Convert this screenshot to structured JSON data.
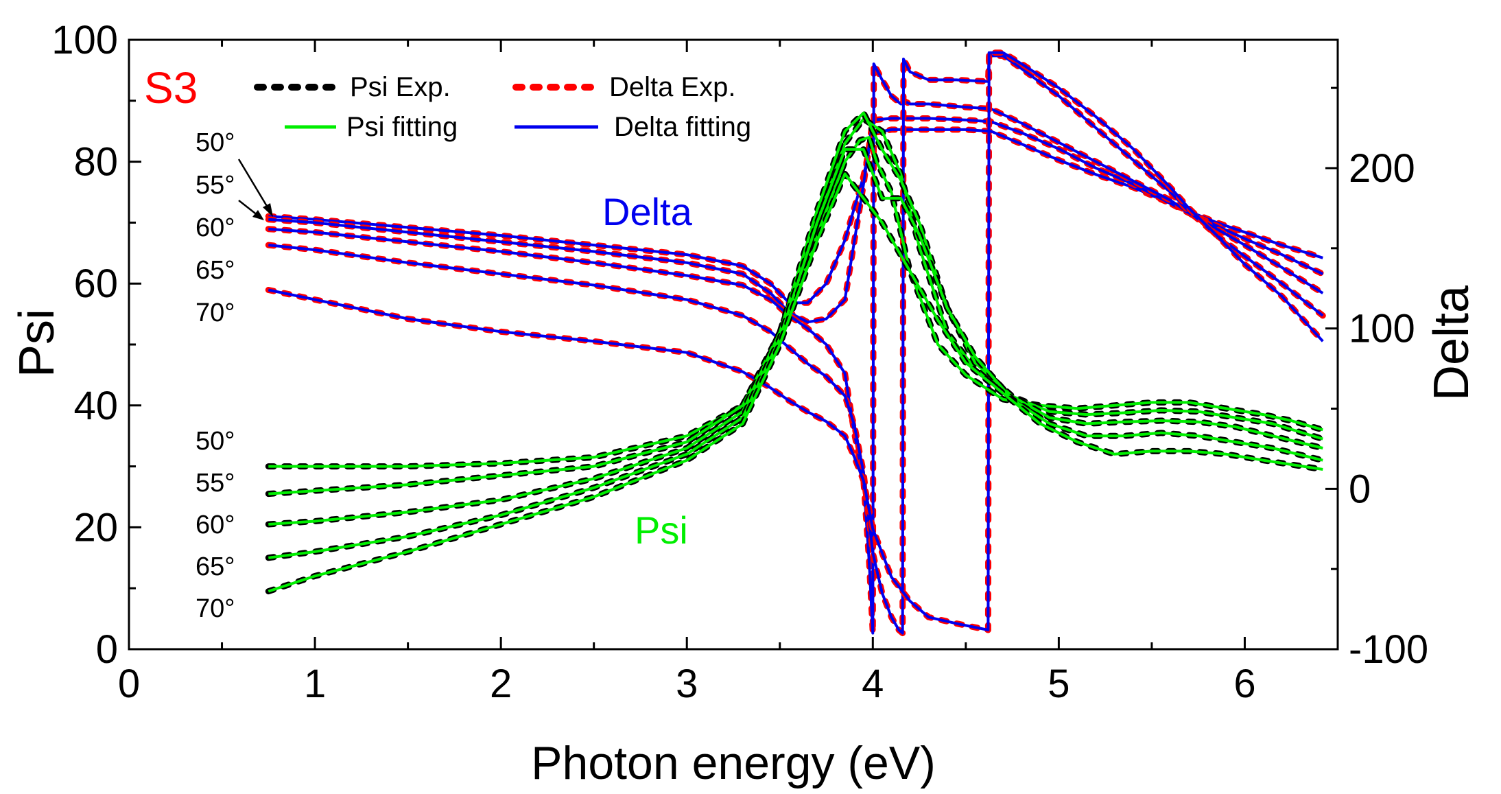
{
  "chart_data": {
    "type": "line",
    "title": "",
    "sample_label": "S3",
    "xlabel": "Photon energy (eV)",
    "ylabel": "Psi",
    "y2label": "Delta",
    "xlim": [
      0,
      6.5
    ],
    "ylim": [
      0,
      100
    ],
    "y2lim": [
      -100,
      280
    ],
    "xticks": [
      "0",
      "1",
      "2",
      "3",
      "4",
      "5",
      "6"
    ],
    "yticks": [
      "0",
      "20",
      "40",
      "60",
      "80",
      "100"
    ],
    "y2ticks": [
      "-100",
      "0",
      "100",
      "200"
    ],
    "legend": {
      "placement": "top-left",
      "entries": [
        "Psi Exp.",
        "Delta Exp.",
        "Psi fitting",
        "Delta fitting"
      ]
    },
    "annotations": {
      "delta_label": "Delta",
      "psi_label": "Psi",
      "delta_angles": [
        "50°",
        "55°",
        "60°",
        "65°",
        "70°"
      ],
      "psi_angles": [
        "50°",
        "55°",
        "60°",
        "65°",
        "70°"
      ]
    },
    "colors": {
      "psi_exp": "#000000",
      "delta_exp": "#ff0000",
      "psi_fit": "#00ee00",
      "delta_fit": "#0000ee",
      "sample": "#ff0000"
    },
    "psi_series": [
      {
        "name": "50°",
        "x": [
          0.75,
          1.0,
          1.5,
          2.0,
          2.5,
          3.0,
          3.3,
          3.5,
          3.7,
          3.85,
          3.93,
          3.98,
          4.02,
          4.1,
          4.2,
          4.35,
          4.5,
          4.7,
          4.9,
          5.1,
          5.3,
          5.5,
          5.7,
          5.9,
          6.1,
          6.25,
          6.42
        ],
        "y": [
          30,
          30,
          30,
          30.5,
          31.5,
          35,
          40,
          51,
          68,
          80,
          83.5,
          84,
          80,
          75,
          62,
          50,
          45,
          41,
          40,
          39.5,
          40,
          40.5,
          40.5,
          39.5,
          38.5,
          37.5,
          36
        ]
      },
      {
        "name": "55°",
        "x": [
          0.75,
          1.0,
          1.5,
          2.0,
          2.5,
          3.0,
          3.3,
          3.5,
          3.7,
          3.85,
          3.95,
          4.05,
          4.15,
          4.25,
          4.4,
          4.55,
          4.75,
          4.95,
          5.15,
          5.35,
          5.55,
          5.75,
          5.95,
          6.15,
          6.42
        ],
        "y": [
          25.5,
          26,
          27,
          28.5,
          30,
          34,
          40,
          52,
          70,
          83,
          87,
          85,
          78,
          66,
          52,
          46,
          41.5,
          39,
          38.5,
          38.8,
          39.2,
          39,
          38,
          37,
          34.5
        ]
      },
      {
        "name": "60°",
        "x": [
          0.75,
          1.0,
          1.5,
          2.0,
          2.5,
          3.0,
          3.3,
          3.5,
          3.7,
          3.85,
          3.95,
          4.05,
          4.15,
          4.25,
          4.4,
          4.55,
          4.75,
          4.95,
          5.15,
          5.35,
          5.55,
          5.75,
          5.95,
          6.15,
          6.42
        ],
        "y": [
          20.5,
          21,
          22.5,
          24.5,
          28,
          33,
          39,
          52,
          72,
          85,
          88,
          82,
          77,
          70,
          56,
          47,
          41.5,
          38,
          37,
          37.3,
          37.5,
          37.3,
          36.5,
          35,
          33
        ]
      },
      {
        "name": "65°",
        "x": [
          0.75,
          1.0,
          1.5,
          2.0,
          2.5,
          3.0,
          3.3,
          3.5,
          3.7,
          3.85,
          3.95,
          4.05,
          4.15,
          4.25,
          4.4,
          4.55,
          4.75,
          4.95,
          5.15,
          5.35,
          5.55,
          5.75,
          5.95,
          6.15,
          6.42
        ],
        "y": [
          15,
          16,
          18.5,
          22,
          26.5,
          32,
          38,
          51,
          70,
          82,
          82,
          74,
          74,
          68,
          56,
          48,
          41,
          37,
          35,
          35,
          35.5,
          35,
          34,
          33,
          31
        ]
      },
      {
        "name": "70°",
        "x": [
          0.75,
          1.0,
          1.5,
          2.0,
          2.5,
          3.0,
          3.3,
          3.5,
          3.7,
          3.85,
          3.95,
          4.05,
          4.2,
          4.35,
          4.5,
          4.7,
          4.9,
          5.1,
          5.3,
          5.5,
          5.7,
          5.9,
          6.1,
          6.42
        ],
        "y": [
          9.5,
          12,
          16,
          20.5,
          25,
          31,
          37,
          50,
          67,
          78,
          74,
          70,
          62,
          54,
          47,
          42,
          37,
          34,
          32,
          32.5,
          32.5,
          32,
          31,
          29.5
        ]
      }
    ],
    "delta_series": [
      {
        "name": "50°",
        "x": [
          0.75,
          1.0,
          1.5,
          2.0,
          2.5,
          3.0,
          3.3,
          3.45,
          3.55,
          3.65,
          3.75,
          3.85,
          3.95,
          4.0,
          4.005,
          4.1,
          4.3,
          4.5,
          4.63,
          4.635,
          4.8,
          5.0,
          5.2,
          5.4,
          5.6,
          5.7,
          5.85,
          6.0,
          6.2,
          6.42
        ],
        "y": [
          170,
          168,
          163,
          158,
          152,
          146,
          139,
          128,
          116,
          116,
          128,
          155,
          195,
          222,
          222,
          224,
          224,
          224,
          223,
          223,
          215,
          205,
          196,
          188,
          178,
          173,
          166,
          160,
          152,
          144
        ]
      },
      {
        "name": "55°",
        "x": [
          0.75,
          1.0,
          1.5,
          2.0,
          2.5,
          3.0,
          3.3,
          3.45,
          3.55,
          3.65,
          3.75,
          3.85,
          3.95,
          4.0,
          4.005,
          4.1,
          4.3,
          4.5,
          4.63,
          4.635,
          4.8,
          5.0,
          5.2,
          5.4,
          5.6,
          5.7,
          5.85,
          6.0,
          6.2,
          6.42
        ],
        "y": [
          168,
          166,
          160,
          154,
          148,
          141,
          134,
          122,
          110,
          104,
          106,
          118,
          190,
          230,
          230,
          231,
          231,
          230,
          229,
          229,
          222,
          212,
          200,
          190,
          178,
          172,
          164,
          156,
          146,
          134
        ]
      },
      {
        "name": "60°",
        "x": [
          0.75,
          1.0,
          1.5,
          2.0,
          2.5,
          3.0,
          3.3,
          3.45,
          3.55,
          3.65,
          3.75,
          3.85,
          3.9,
          3.95,
          3.98,
          4.0,
          4.005,
          4.05,
          4.1,
          4.15,
          4.16,
          4.165,
          4.2,
          4.3,
          4.5,
          4.63,
          4.635,
          4.8,
          5.0,
          5.2,
          5.4,
          5.6,
          5.7,
          5.85,
          6.0,
          6.2,
          6.42
        ],
        "y": [
          162,
          160,
          154,
          148,
          141,
          133,
          127,
          118,
          108,
          100,
          90,
          72,
          35,
          5,
          -45,
          -90,
          265,
          255,
          245,
          240,
          240,
          242,
          240,
          240,
          238,
          237,
          237,
          228,
          216,
          204,
          192,
          180,
          172,
          162,
          152,
          138,
          122
        ]
      },
      {
        "name": "65°",
        "x": [
          0.75,
          1.0,
          1.5,
          2.0,
          2.5,
          3.0,
          3.3,
          3.45,
          3.55,
          3.65,
          3.75,
          3.85,
          3.9,
          3.95,
          4.0,
          4.05,
          4.1,
          4.14,
          4.16,
          4.165,
          4.2,
          4.3,
          4.45,
          4.62,
          4.625,
          4.7,
          4.8,
          5.0,
          5.2,
          5.4,
          5.6,
          5.7,
          5.85,
          6.0,
          6.2,
          6.42
        ],
        "y": [
          152,
          149,
          141,
          134,
          127,
          118,
          108,
          98,
          88,
          78,
          70,
          58,
          40,
          10,
          -40,
          -65,
          -80,
          -88,
          -90,
          268,
          260,
          255,
          255,
          254,
          270,
          270,
          262,
          245,
          225,
          205,
          185,
          173,
          158,
          145,
          128,
          108
        ]
      },
      {
        "name": "70°",
        "x": [
          0.75,
          1.0,
          1.5,
          2.0,
          2.5,
          3.0,
          3.3,
          3.45,
          3.55,
          3.65,
          3.75,
          3.85,
          3.9,
          3.95,
          4.0,
          4.1,
          4.2,
          4.3,
          4.45,
          4.62,
          4.625,
          4.7,
          4.8,
          5.0,
          5.2,
          5.4,
          5.6,
          5.7,
          5.85,
          6.0,
          6.2,
          6.42
        ],
        "y": [
          124,
          118,
          106,
          98,
          92,
          85,
          73,
          63,
          55,
          48,
          42,
          33,
          20,
          5,
          -25,
          -55,
          -70,
          -80,
          -84,
          -88,
          272,
          272,
          265,
          250,
          232,
          212,
          188,
          175,
          158,
          140,
          120,
          92
        ]
      }
    ]
  }
}
